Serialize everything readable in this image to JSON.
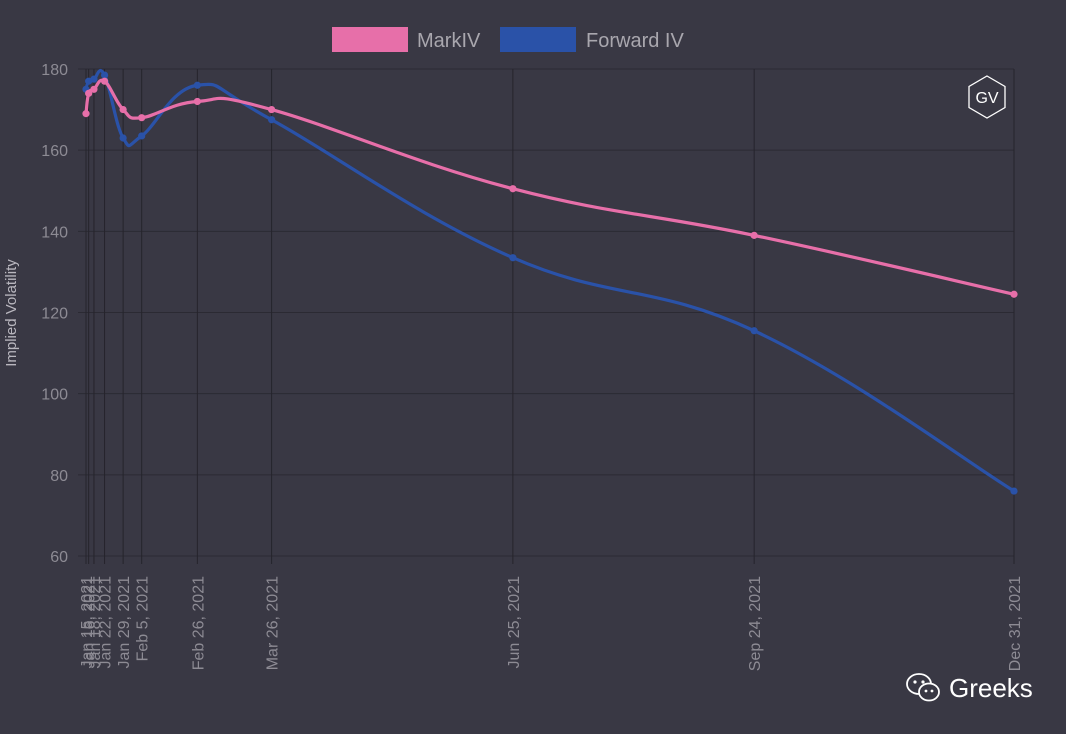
{
  "chart_data": {
    "type": "line",
    "ylabel": "Implied Volatility",
    "xlabel": "",
    "ylim": [
      60,
      180
    ],
    "yticks": [
      60,
      80,
      100,
      120,
      140,
      160,
      180
    ],
    "x_dates": [
      "2021-01-15",
      "2021-01-16",
      "2021-01-18",
      "2021-01-22",
      "2021-01-29",
      "2021-02-05",
      "2021-02-26",
      "2021-03-26",
      "2021-06-25",
      "2021-09-24",
      "2021-12-31"
    ],
    "x_labels": [
      "Jan 15, 2021",
      "Jan 16, 2021",
      "Jan 18, 2021",
      "Jan 22, 2021",
      "Jan 29, 2021",
      "Feb 5, 2021",
      "Feb 26, 2021",
      "Mar 26, 2021",
      "Jun 25, 2021",
      "Sep 24, 2021",
      "Dec 31, 2021"
    ],
    "series": [
      {
        "name": "MarkIV",
        "color": "#e76fa9",
        "values": [
          169,
          174,
          175,
          177,
          170,
          168,
          172,
          170,
          150.5,
          139,
          124.5
        ]
      },
      {
        "name": "Forward IV",
        "color": "#2a52a8",
        "values": [
          175,
          177,
          177.5,
          178.5,
          163,
          163.5,
          176,
          167.5,
          133.5,
          115.5,
          76
        ]
      }
    ],
    "legend_position": "top-center",
    "grid": true
  },
  "logo": {
    "text": "GV"
  },
  "watermark": {
    "text": "Greeks",
    "icon": "wechat-icon"
  }
}
